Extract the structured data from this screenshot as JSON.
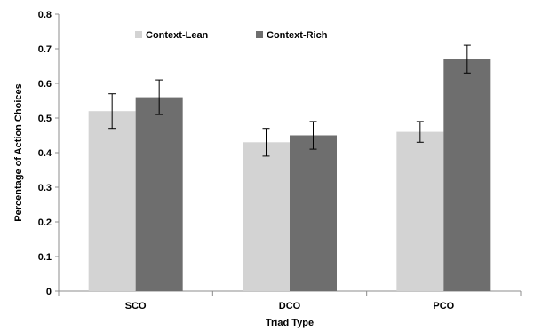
{
  "chart_data": {
    "type": "bar",
    "title": "",
    "xlabel": "Triad Type",
    "ylabel": "Percentage of Action Choices",
    "categories": [
      "SCO",
      "DCO",
      "PCO"
    ],
    "ylim": [
      0,
      0.8
    ],
    "yticks": [
      "0",
      "0.1",
      "0.2",
      "0.3",
      "0.4",
      "0.5",
      "0.6",
      "0.7",
      "0.8"
    ],
    "series": [
      {
        "name": "Context-Lean",
        "color": "#d3d3d3",
        "values": [
          0.52,
          0.43,
          0.46
        ],
        "error": [
          0.05,
          0.04,
          0.03
        ]
      },
      {
        "name": "Context-Rich",
        "color": "#6e6e6e",
        "values": [
          0.56,
          0.45,
          0.67
        ],
        "error": [
          0.05,
          0.04,
          0.04
        ]
      }
    ],
    "legend": "top-left",
    "grid": false,
    "error_bars": true
  }
}
